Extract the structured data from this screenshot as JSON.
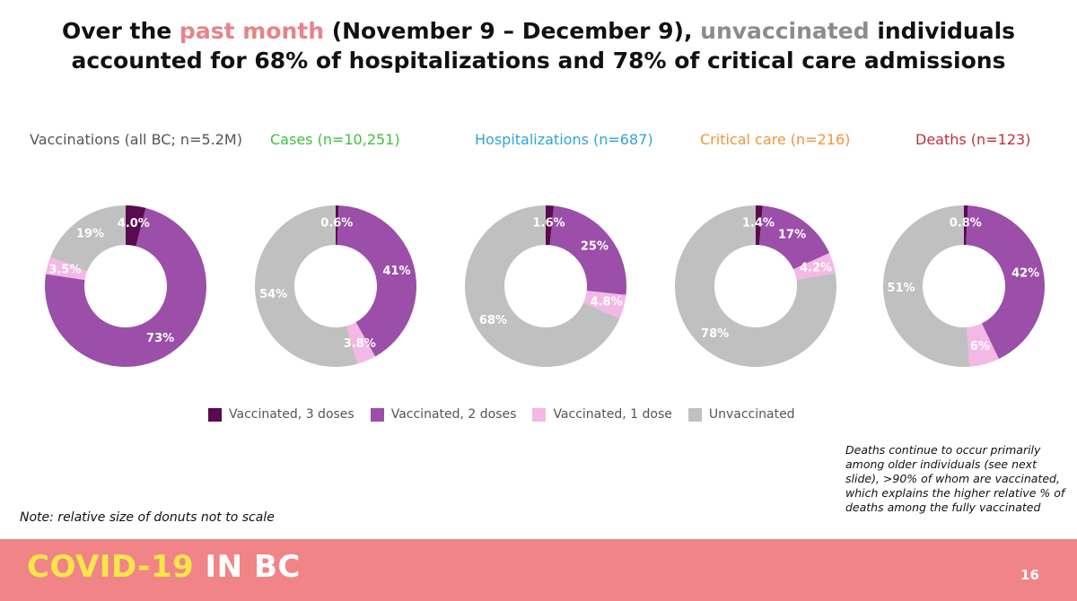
{
  "header": {
    "title_part1": "Over the ",
    "title_hl1": "past month",
    "title_part2": " (November 9 – December 9), ",
    "title_hl2": "unvaccinated",
    "title_part3": " individuals",
    "title_line2": "accounted for 68% of hospitalizations and 78% of critical care admissions"
  },
  "colors": {
    "vaccinated_3": "#5a0a4e",
    "vaccinated_2": "#9b4fa8",
    "vaccinated_1": "#f4b8e6",
    "unvaccinated": "#c0c0c0",
    "hl_pink": "#e8838a",
    "hl_grey": "#8c8c8c"
  },
  "chart_data": [
    {
      "type": "pie",
      "title": "Vaccinations (all BC; n=5.2M)",
      "title_color": "#555555",
      "categories": [
        "Vaccinated, 3 doses",
        "Vaccinated, 2 doses",
        "Vaccinated, 1 dose",
        "Unvaccinated"
      ],
      "values": [
        4.0,
        73,
        3.5,
        19
      ],
      "labels": [
        "4.0%",
        "73%",
        "3.5%",
        "19%"
      ]
    },
    {
      "type": "pie",
      "title": "Cases (n=10,251)",
      "title_color": "#3ec23e",
      "categories": [
        "Vaccinated, 3 doses",
        "Vaccinated, 2 doses",
        "Vaccinated, 1 dose",
        "Unvaccinated"
      ],
      "values": [
        0.6,
        41,
        3.8,
        54
      ],
      "labels": [
        "0.6%",
        "41%",
        "3.8%",
        "54%"
      ]
    },
    {
      "type": "pie",
      "title": "Hospitalizations (n=687)",
      "title_color": "#2fa5d8",
      "categories": [
        "Vaccinated, 3 doses",
        "Vaccinated, 2 doses",
        "Vaccinated, 1 dose",
        "Unvaccinated"
      ],
      "values": [
        1.6,
        25,
        4.8,
        68
      ],
      "labels": [
        "1.6%",
        "25%",
        "4.8%",
        "68%"
      ]
    },
    {
      "type": "pie",
      "title": "Critical care (n=216)",
      "title_color": "#f0953a",
      "categories": [
        "Vaccinated, 3 doses",
        "Vaccinated, 2 doses",
        "Vaccinated, 1 dose",
        "Unvaccinated"
      ],
      "values": [
        1.4,
        17,
        4.2,
        78
      ],
      "labels": [
        "1.4%",
        "17%",
        "4.2%",
        "78%"
      ]
    },
    {
      "type": "pie",
      "title": "Deaths (n=123)",
      "title_color": "#c0303a",
      "categories": [
        "Vaccinated, 3 doses",
        "Vaccinated, 2 doses",
        "Vaccinated, 1 dose",
        "Unvaccinated"
      ],
      "values": [
        0.8,
        42,
        6,
        51
      ],
      "labels": [
        "0.8%",
        "42%",
        "6%",
        "51%"
      ]
    }
  ],
  "legend": [
    {
      "label": "Vaccinated, 3 doses",
      "color": "#5a0a4e"
    },
    {
      "label": "Vaccinated, 2 doses",
      "color": "#9b4fa8"
    },
    {
      "label": "Vaccinated, 1 dose",
      "color": "#f4b8e6"
    },
    {
      "label": "Unvaccinated",
      "color": "#c0c0c0"
    }
  ],
  "notes": {
    "right": "Deaths continue to occur primarily among older individuals (see next slide), >90% of whom are vaccinated, which explains the higher relative % of deaths among the fully vaccinated",
    "left": "Note: relative size of donuts not to scale"
  },
  "footer": {
    "brand_part1": "COVID-19",
    "brand_part2": " IN BC",
    "page_number": "16"
  }
}
